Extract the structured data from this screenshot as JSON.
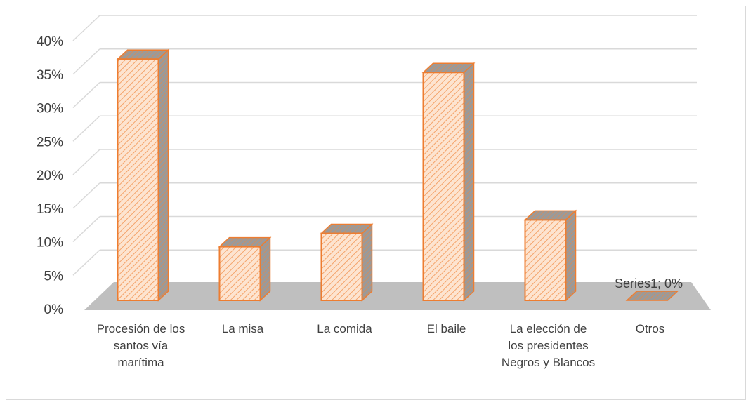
{
  "chart_data": {
    "type": "bar",
    "categories": [
      "Procesión de los santos vía marítima",
      "La misa",
      "La comida",
      "El baile",
      "La elección de los presidentes Negros y Blancos",
      "Otros"
    ],
    "series": [
      {
        "values": [
          36,
          8,
          10,
          34,
          12,
          0
        ]
      }
    ],
    "ylim": [
      0,
      40
    ],
    "yticks": [
      "0%",
      "5%",
      "10%",
      "15%",
      "20%",
      "25%",
      "30%",
      "35%",
      "40%"
    ],
    "data_labels": [
      {
        "category_index": 5,
        "text": "Series1; 0%"
      }
    ],
    "grid": true,
    "legend": "none",
    "style": "3d-hatched",
    "colors": {
      "bar_fill": "#fde4d0",
      "bar_hatch": "#f4a36a",
      "bar_edge": "#ed7d31",
      "side_fill": "#8c8c8c",
      "floor": "#bfbfbf",
      "grid": "#d9d9d9"
    }
  }
}
